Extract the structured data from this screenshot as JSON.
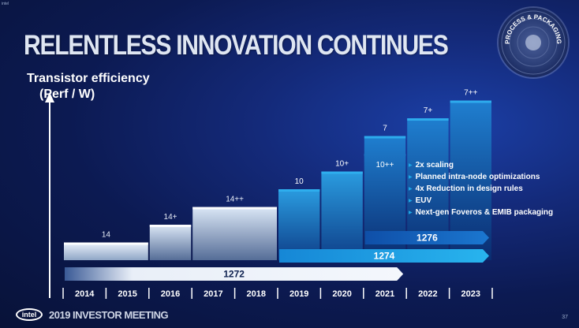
{
  "corner_text": "intel",
  "title": "RELENTLESS INNOVATION CONTINUES",
  "y_axis_label": {
    "line1": "Transistor efficiency",
    "line2": "(Perf / W)"
  },
  "badge_text": "PROCESS & PACKAGING",
  "footer": {
    "logo": "intel",
    "event": "2019 INVESTOR MEETING",
    "page_number": "37"
  },
  "bullets": [
    "2x scaling",
    "Planned intra-node optimizations",
    "4x Reduction in design rules",
    "EUV",
    "Next-gen Foveros & EMIB packaging"
  ],
  "colors": {
    "bar_light": "#d9e6f5",
    "bar_blue": "#1a6fc4",
    "bar_bright": "#1aa0e6",
    "arrow_1276": "#1565c0",
    "arrow_1274": "#1ba1e2",
    "arrow_1272": "#e8eef7"
  },
  "chart_data": {
    "type": "bar",
    "categories": [
      "2014",
      "2015",
      "2016",
      "2017",
      "2018",
      "2019",
      "2020",
      "2021",
      "2022",
      "2023"
    ],
    "nodes": [
      {
        "label": "14",
        "start": "2014",
        "end": "2015",
        "level": 1
      },
      {
        "label": "14+",
        "start": "2016",
        "end": "2016",
        "level": 2
      },
      {
        "label": "14++",
        "start": "2017",
        "end": "2018",
        "level": 3
      },
      {
        "label": "10",
        "start": "2019",
        "end": "2019",
        "level": 4
      },
      {
        "label": "10+",
        "start": "2020",
        "end": "2020",
        "level": 5
      },
      {
        "label": "10++",
        "start": "2021",
        "end": "2021",
        "level": 6
      },
      {
        "label": "7",
        "start": "2021",
        "end": "2021",
        "level": 7
      },
      {
        "label": "7+",
        "start": "2022",
        "end": "2022",
        "level": 8
      },
      {
        "label": "7++",
        "start": "2023",
        "end": "2023",
        "level": 9
      }
    ],
    "process_timelines": [
      {
        "label": "1276",
        "start": "2021",
        "end": "2023"
      },
      {
        "label": "1274",
        "start": "2019",
        "end": "2023"
      },
      {
        "label": "1272",
        "start": "2014",
        "end": "2021"
      }
    ],
    "ylabel": "Transistor efficiency (Perf / W)"
  }
}
